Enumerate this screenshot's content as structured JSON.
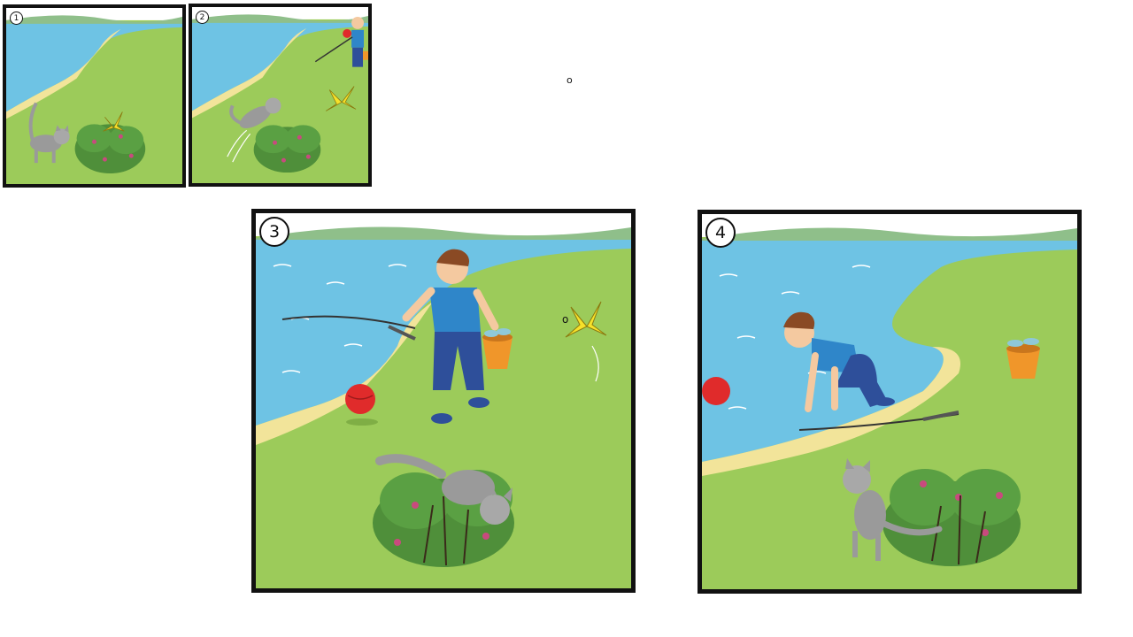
{
  "panels": [
    {
      "number": "1"
    },
    {
      "number": "2"
    },
    {
      "number": "3"
    },
    {
      "number": "4"
    }
  ],
  "marks": {
    "top_dot": "o",
    "panel3_dot": "o"
  },
  "colors": {
    "sky": "#ffffff",
    "water": "#6ec3e4",
    "grass": "#9ccb5a",
    "hills": "#8fbf8a",
    "sand": "#f2e49a",
    "bush": "#4f8f3a",
    "ball": "#e02b2b",
    "butterfly": "#f6e12a",
    "bucket": "#f0962a",
    "shirt": "#2f86c9",
    "pants": "#2e4f9a",
    "cat": "#9a9a9a"
  }
}
